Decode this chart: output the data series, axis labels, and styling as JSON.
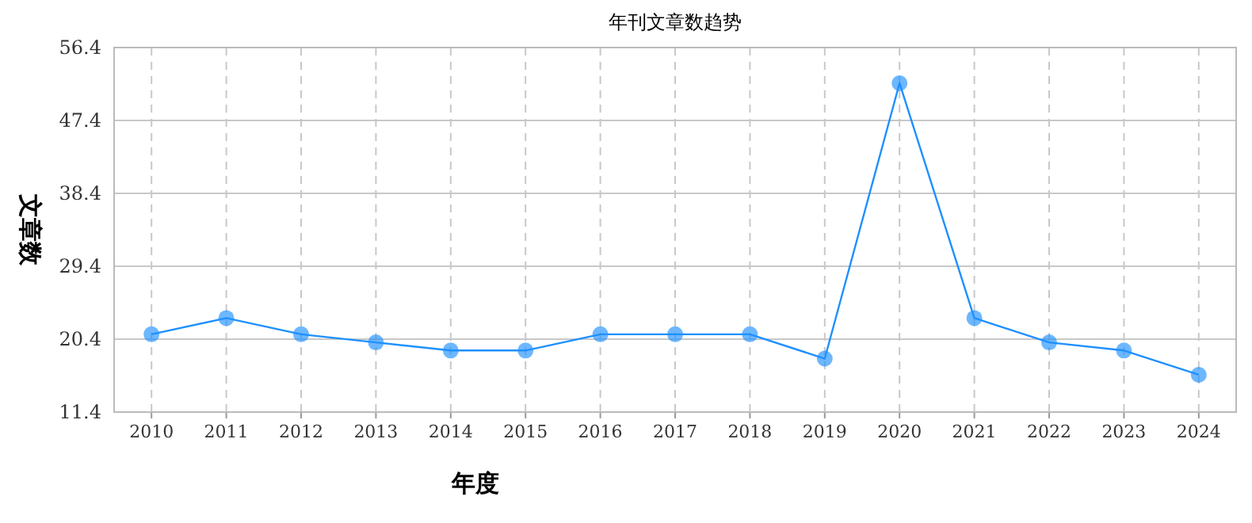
{
  "chart_data": {
    "type": "line",
    "title": "年刊文章数趋势",
    "xlabel": "年度",
    "ylabel": "文章数",
    "categories": [
      "2010",
      "2011",
      "2012",
      "2013",
      "2014",
      "2015",
      "2016",
      "2017",
      "2018",
      "2019",
      "2020",
      "2021",
      "2022",
      "2023",
      "2024"
    ],
    "series": [
      {
        "color": "#1e90ff",
        "values": [
          21,
          23,
          21,
          20,
          19,
          19,
          21,
          21,
          21,
          18,
          52,
          23,
          20,
          19,
          16
        ]
      }
    ],
    "ylim": [
      11.4,
      56.4
    ],
    "yticks": [
      11.4,
      20.4,
      29.4,
      38.4,
      47.4,
      56.4
    ],
    "grid": true,
    "marker": "circle",
    "line_style": "solid"
  }
}
